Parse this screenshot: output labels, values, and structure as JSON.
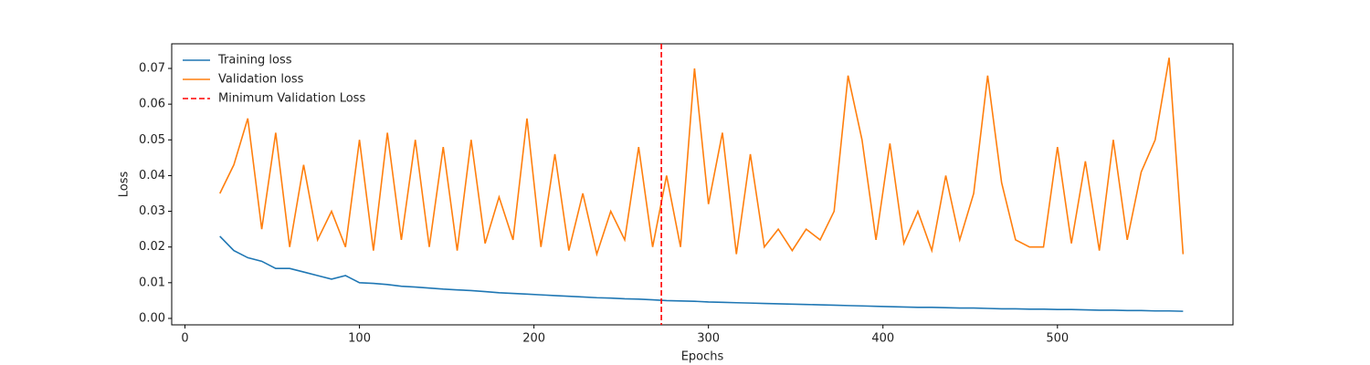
{
  "chart_data": {
    "type": "line",
    "xlabel": "Epochs",
    "ylabel": "Loss",
    "x": [
      20,
      28,
      36,
      44,
      52,
      60,
      68,
      76,
      84,
      92,
      100,
      108,
      116,
      124,
      132,
      140,
      148,
      156,
      164,
      172,
      180,
      188,
      196,
      204,
      212,
      220,
      228,
      236,
      244,
      252,
      260,
      268,
      276,
      284,
      292,
      300,
      308,
      316,
      324,
      332,
      340,
      348,
      356,
      364,
      372,
      380,
      388,
      396,
      404,
      412,
      420,
      428,
      436,
      444,
      452,
      460,
      468,
      476,
      484,
      492,
      500,
      508,
      516,
      524,
      532,
      540,
      548,
      556,
      564,
      572
    ],
    "series": [
      {
        "name": "Training loss",
        "color": "#1f77b4",
        "values": [
          0.023,
          0.019,
          0.017,
          0.016,
          0.014,
          0.014,
          0.013,
          0.012,
          0.011,
          0.012,
          0.01,
          0.0098,
          0.0095,
          0.009,
          0.0088,
          0.0085,
          0.0082,
          0.008,
          0.0078,
          0.0075,
          0.0072,
          0.007,
          0.0068,
          0.0066,
          0.0064,
          0.0062,
          0.006,
          0.0058,
          0.0057,
          0.0055,
          0.0054,
          0.0052,
          0.005,
          0.0049,
          0.0048,
          0.0046,
          0.0045,
          0.0044,
          0.0043,
          0.0042,
          0.0041,
          0.004,
          0.0039,
          0.0038,
          0.0037,
          0.0036,
          0.0035,
          0.0034,
          0.0033,
          0.0032,
          0.0031,
          0.0031,
          0.003,
          0.0029,
          0.0029,
          0.0028,
          0.0027,
          0.0027,
          0.0026,
          0.0026,
          0.0025,
          0.0025,
          0.0024,
          0.0023,
          0.0023,
          0.0022,
          0.0022,
          0.0021,
          0.0021,
          0.002
        ]
      },
      {
        "name": "Validation loss",
        "color": "#ff7f0e",
        "values": [
          0.035,
          0.043,
          0.056,
          0.025,
          0.052,
          0.02,
          0.043,
          0.022,
          0.03,
          0.02,
          0.05,
          0.019,
          0.052,
          0.022,
          0.05,
          0.02,
          0.048,
          0.019,
          0.05,
          0.021,
          0.034,
          0.022,
          0.056,
          0.02,
          0.046,
          0.019,
          0.035,
          0.018,
          0.03,
          0.022,
          0.048,
          0.02,
          0.04,
          0.02,
          0.07,
          0.032,
          0.052,
          0.018,
          0.046,
          0.02,
          0.025,
          0.019,
          0.025,
          0.022,
          0.03,
          0.068,
          0.05,
          0.022,
          0.049,
          0.021,
          0.03,
          0.019,
          0.04,
          0.022,
          0.035,
          0.068,
          0.038,
          0.022,
          0.02,
          0.02,
          0.048,
          0.021,
          0.044,
          0.019,
          0.05,
          0.022,
          0.041,
          0.05,
          0.073,
          0.018
        ]
      }
    ],
    "vline": {
      "name": "Minimum Validation Loss",
      "x": 273,
      "color": "red",
      "style": "dashed"
    },
    "xlim": [
      -7.6,
      600.6
    ],
    "xticks": [
      0,
      100,
      200,
      300,
      400,
      500
    ],
    "ylim": [
      -0.0018,
      0.0769
    ],
    "yticks": [
      {
        "value": 0,
        "label": "0.00"
      },
      {
        "value": 0.01,
        "label": "0.01"
      },
      {
        "value": 0.02,
        "label": "0.02"
      },
      {
        "value": 0.03,
        "label": "0.03"
      },
      {
        "value": 0.04,
        "label": "0.04"
      },
      {
        "value": 0.05,
        "label": "0.05"
      },
      {
        "value": 0.06,
        "label": "0.06"
      },
      {
        "value": 0.07,
        "label": "0.07"
      }
    ],
    "grid": false,
    "legend": "upper left"
  }
}
